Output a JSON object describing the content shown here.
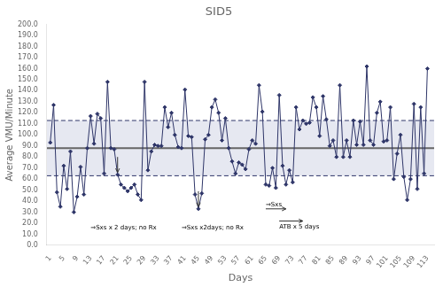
{
  "chart_data": {
    "type": "line",
    "title": "SID5",
    "xlabel": "Days",
    "ylabel": "Average VMU/Minute",
    "x": [
      1,
      2,
      3,
      4,
      5,
      6,
      7,
      8,
      9,
      10,
      11,
      12,
      13,
      14,
      15,
      16,
      17,
      18,
      19,
      20,
      21,
      22,
      23,
      24,
      25,
      26,
      27,
      28,
      29,
      30,
      31,
      32,
      33,
      34,
      35,
      36,
      37,
      38,
      39,
      40,
      41,
      42,
      43,
      44,
      45,
      46,
      47,
      48,
      49,
      50,
      51,
      52,
      53,
      54,
      55,
      56,
      57,
      58,
      59,
      60,
      61,
      62,
      63,
      64,
      65,
      66,
      67,
      68,
      69,
      70,
      71,
      72,
      73,
      74,
      75,
      76,
      77,
      78,
      79,
      80,
      81,
      82,
      83,
      84,
      85,
      86,
      87,
      88,
      89,
      90,
      91,
      92,
      93,
      94,
      95,
      96,
      97,
      98,
      99,
      100,
      101,
      102,
      103,
      104,
      105,
      106,
      107,
      108,
      109,
      110,
      111,
      112,
      113
    ],
    "values": [
      93,
      127,
      48,
      35,
      72,
      51,
      85,
      30,
      44,
      71,
      46,
      88,
      117,
      92,
      119,
      115,
      65,
      148,
      88,
      87,
      64,
      55,
      52,
      49,
      52,
      55,
      46,
      41,
      148,
      68,
      85,
      91,
      90,
      90,
      125,
      107,
      120,
      100,
      89,
      88,
      141,
      99,
      98,
      46,
      33,
      47,
      96,
      100,
      125,
      132,
      120,
      95,
      115,
      88,
      76,
      65,
      75,
      73,
      69,
      87,
      95,
      92,
      145,
      121,
      55,
      54,
      70,
      52,
      136,
      72,
      55,
      68,
      57,
      125,
      105,
      113,
      110,
      111,
      134,
      125,
      99,
      135,
      114,
      90,
      95,
      80,
      145,
      80,
      95,
      80,
      113,
      91,
      112,
      91,
      162,
      95,
      91,
      120,
      130,
      94,
      95,
      125,
      60,
      83,
      100,
      62,
      41,
      60,
      128,
      51,
      125,
      65,
      160
    ],
    "color": "#2e3568",
    "marker": "diamond",
    "line_style": "solid",
    "xlim": [
      0,
      115
    ],
    "xticks": [
      1,
      5,
      9,
      13,
      17,
      21,
      25,
      29,
      33,
      37,
      41,
      45,
      49,
      53,
      57,
      61,
      65,
      69,
      73,
      77,
      81,
      85,
      89,
      93,
      97,
      101,
      105,
      109,
      113
    ],
    "ylim": [
      0.0,
      200.0
    ],
    "yticks": [
      {
        "value": 0,
        "label": "0.0"
      },
      {
        "value": 10,
        "label": "10.0"
      },
      {
        "value": 20,
        "label": "20.0"
      },
      {
        "value": 30,
        "label": "30.0"
      },
      {
        "value": 40,
        "label": "40.0"
      },
      {
        "value": 50,
        "label": "50.0"
      },
      {
        "value": 60,
        "label": "60.0"
      },
      {
        "value": 70,
        "label": "70.0"
      },
      {
        "value": 80,
        "label": "80.0"
      },
      {
        "value": 90,
        "label": "90.0"
      },
      {
        "value": 100,
        "label": "100.0"
      },
      {
        "value": 110,
        "label": "110.0"
      },
      {
        "value": 120,
        "label": "120.0"
      },
      {
        "value": 130,
        "label": "130.0"
      },
      {
        "value": 140,
        "label": "140.0"
      },
      {
        "value": 150,
        "label": "150.0"
      },
      {
        "value": 160,
        "label": "160.0"
      },
      {
        "value": 170,
        "label": "170.0"
      },
      {
        "value": 180,
        "label": "180.0"
      },
      {
        "value": 190,
        "label": "190.0"
      },
      {
        "value": 200,
        "label": "200.0"
      }
    ],
    "grid": false,
    "band": {
      "from": 63,
      "to": 113,
      "color": "#c8cce0"
    },
    "reference_lines": [
      {
        "y": 88,
        "color": "#666666",
        "line_style": "solid"
      },
      {
        "y": 63,
        "color": "#2e3568",
        "line_style": "dashed"
      },
      {
        "y": 113,
        "color": "#2e3568",
        "line_style": "dashed"
      }
    ],
    "arrows": [
      {
        "from": [
          21,
          80
        ],
        "to": [
          21,
          66
        ]
      },
      {
        "from": [
          45,
          49
        ],
        "to": [
          45,
          35
        ]
      },
      {
        "from": [
          65,
          33
        ],
        "to": [
          71,
          33
        ]
      },
      {
        "from": [
          69,
          22
        ],
        "to": [
          76,
          22
        ]
      }
    ],
    "annotations": [
      {
        "text": "⇒Sxs x 2 days; no Rx",
        "x": 13,
        "y": 16
      },
      {
        "text": "⇒Sxs x2days; no Rx",
        "x": 40,
        "y": 16
      },
      {
        "text": "⇒Sxs",
        "x": 65,
        "y": 37
      },
      {
        "text": "ATB x 5 days",
        "x": 69,
        "y": 17
      }
    ]
  }
}
